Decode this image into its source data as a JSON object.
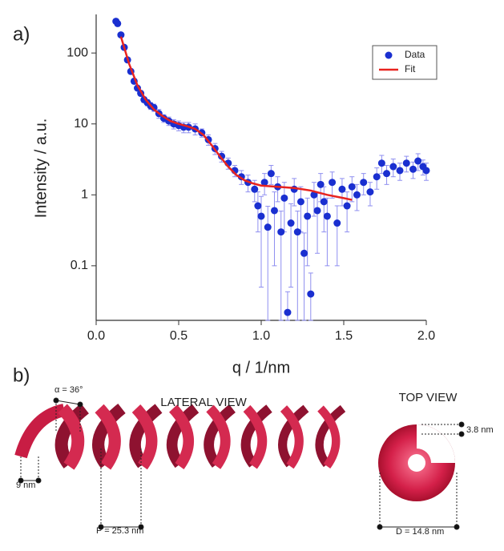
{
  "panel_labels": [
    "a)",
    "b)"
  ],
  "chart_data": {
    "type": "scatter",
    "x_label": "q / 1/nm",
    "y_label": "Intensity / a.u.",
    "xlim": [
      0,
      2
    ],
    "ylim": [
      0.017,
      350
    ],
    "log_y": true,
    "legend": "upper right",
    "xticks": [
      {
        "value": 0,
        "label": "0.0"
      },
      0.5,
      {
        "value": 1,
        "label": "1.0"
      },
      1.5,
      {
        "value": 2,
        "label": "2.0"
      }
    ],
    "yticks": [
      0.1,
      1,
      10,
      100
    ],
    "series": [
      {
        "name": "Data",
        "mark": "point",
        "color": "#1a2fd0",
        "x": [
          0.12,
          0.13,
          0.15,
          0.17,
          0.19,
          0.21,
          0.23,
          0.25,
          0.27,
          0.29,
          0.31,
          0.33,
          0.35,
          0.38,
          0.41,
          0.44,
          0.47,
          0.5,
          0.53,
          0.56,
          0.6,
          0.64,
          0.68,
          0.72,
          0.76,
          0.8,
          0.84,
          0.88,
          0.92,
          0.96,
          0.98,
          1.0,
          1.02,
          1.04,
          1.06,
          1.08,
          1.1,
          1.12,
          1.14,
          1.16,
          1.18,
          1.2,
          1.22,
          1.24,
          1.26,
          1.28,
          1.3,
          1.32,
          1.34,
          1.36,
          1.38,
          1.4,
          1.43,
          1.46,
          1.49,
          1.52,
          1.55,
          1.58,
          1.62,
          1.66,
          1.7,
          1.73,
          1.76,
          1.8,
          1.84,
          1.88,
          1.92,
          1.95,
          1.98,
          2.0
        ],
        "values": [
          280,
          260,
          180,
          120,
          80,
          55,
          40,
          32,
          27,
          22,
          20,
          18,
          17,
          14,
          12,
          11,
          10,
          9.5,
          9,
          9,
          8.5,
          7.5,
          6,
          4.5,
          3.5,
          2.8,
          2.2,
          1.8,
          1.5,
          1.2,
          0.7,
          0.5,
          1.5,
          0.35,
          2.0,
          0.6,
          1.3,
          0.3,
          0.9,
          0.022,
          0.4,
          1.2,
          0.3,
          0.8,
          0.15,
          0.5,
          0.04,
          1.0,
          0.6,
          1.4,
          0.8,
          0.5,
          1.5,
          0.4,
          1.2,
          0.7,
          1.3,
          1.0,
          1.5,
          1.1,
          1.8,
          2.8,
          2.0,
          2.5,
          2.2,
          2.8,
          2.3,
          3.0,
          2.5,
          2.2
        ],
        "errors": [
          10,
          10,
          8,
          6,
          4,
          3,
          2.5,
          2,
          2,
          2,
          2,
          2,
          2,
          2,
          1.5,
          1.5,
          1.5,
          1.5,
          1.5,
          1.5,
          1.5,
          1,
          1,
          0.8,
          0.6,
          0.5,
          0.4,
          0.4,
          0.4,
          0.4,
          0.4,
          0.45,
          0.5,
          0.34,
          0.6,
          0.5,
          0.5,
          0.29,
          0.6,
          0.021,
          0.35,
          0.5,
          0.29,
          0.5,
          0.14,
          0.4,
          0.039,
          0.5,
          0.45,
          0.6,
          0.5,
          0.4,
          0.6,
          0.3,
          0.5,
          0.4,
          0.5,
          0.4,
          0.5,
          0.4,
          0.6,
          0.8,
          0.6,
          0.7,
          0.6,
          0.7,
          0.6,
          0.8,
          0.6,
          0.6
        ]
      },
      {
        "name": "Fit",
        "mark": "line",
        "color": "#e8231f",
        "x": [
          0.15,
          0.2,
          0.25,
          0.3,
          0.35,
          0.4,
          0.45,
          0.5,
          0.55,
          0.6,
          0.65,
          0.7,
          0.75,
          0.8,
          0.85,
          0.9,
          0.95,
          1.0,
          1.1,
          1.2,
          1.3,
          1.4,
          1.5,
          1.55
        ],
        "values": [
          170,
          70,
          35,
          22,
          16,
          13,
          11,
          10,
          9.3,
          8.5,
          7,
          5,
          3.5,
          2.5,
          1.9,
          1.6,
          1.45,
          1.35,
          1.3,
          1.25,
          1.15,
          1.0,
          0.9,
          0.85
        ]
      }
    ]
  },
  "diagram": {
    "angle": "α = 36°",
    "lateral_view": "LATERAL VIEW",
    "top_view": "TOP VIEW",
    "width": "9 nm",
    "pitch": "P = 25.3 nm",
    "thickness": "3.8 nm",
    "diameter": "D = 14.8 nm"
  }
}
